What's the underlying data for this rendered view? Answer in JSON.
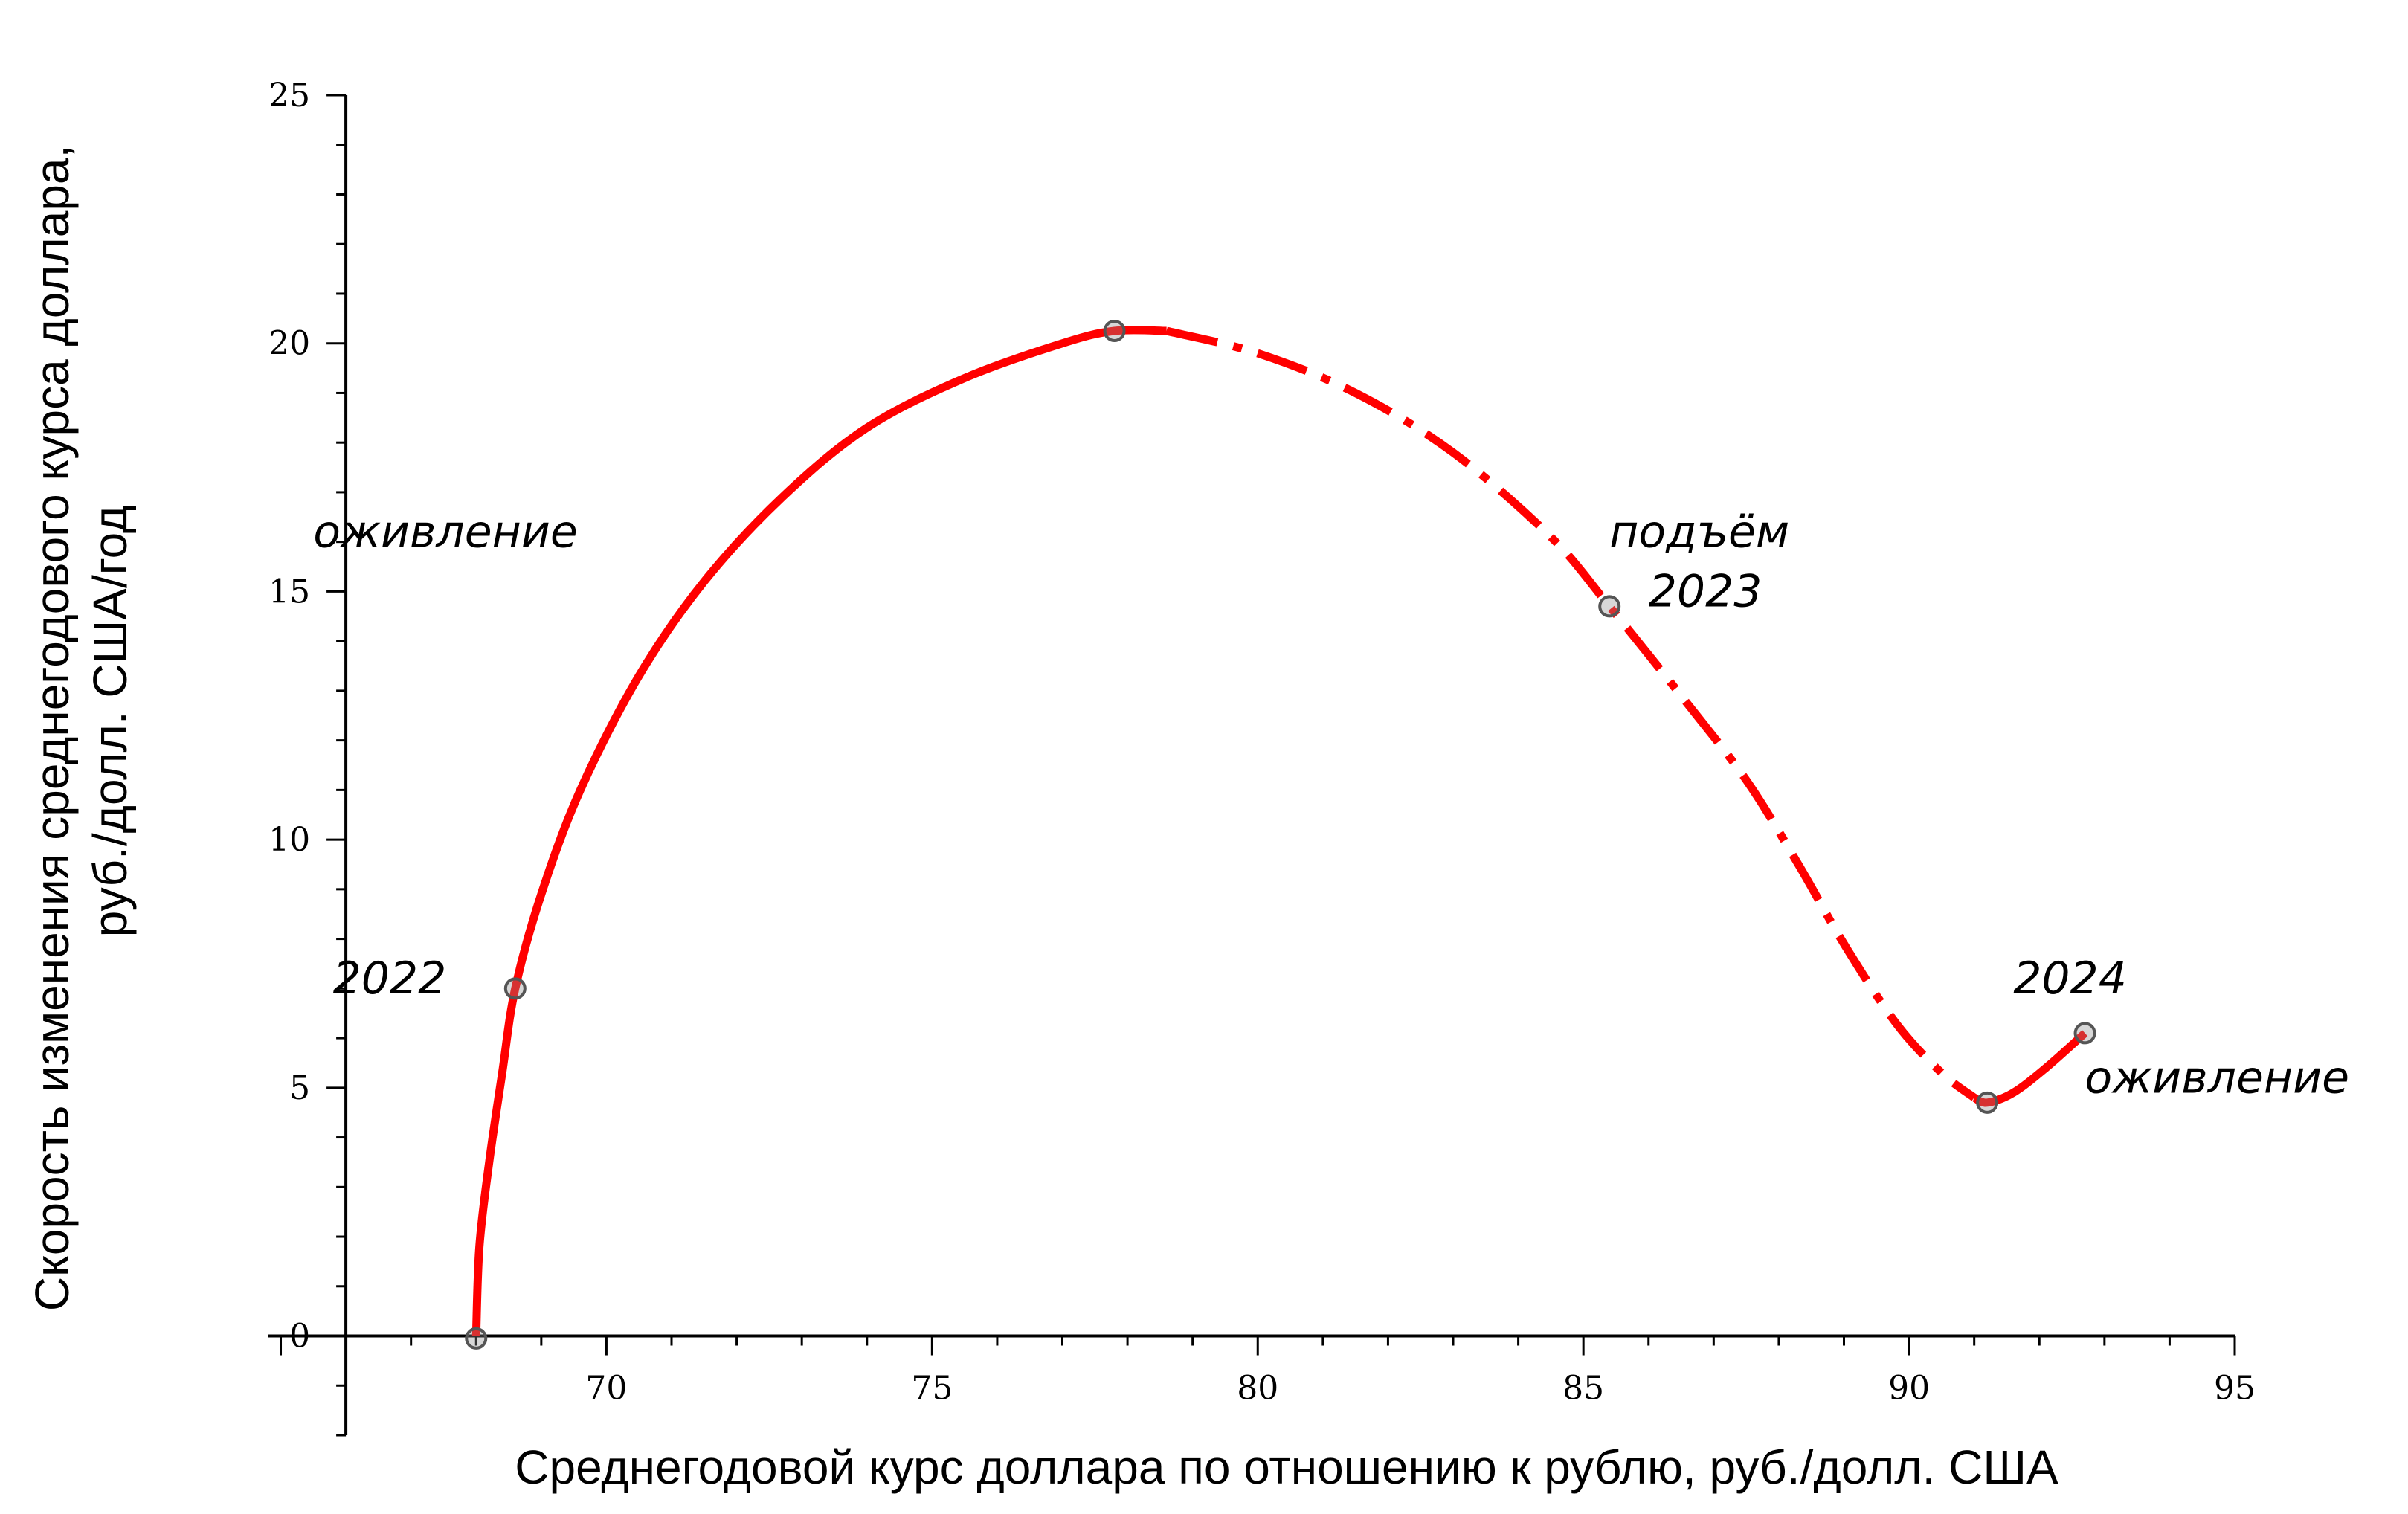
{
  "chart_data": {
    "type": "line",
    "title": "",
    "xlabel": "Среднегодовой курс доллара по отношению к рублю, руб./долл. США",
    "ylabel_lines": [
      "Скорость изменения среднегодового курса доллара,",
      "руб./долл. США/год"
    ],
    "xlim": [
      64.8,
      95
    ],
    "ylim": [
      -2,
      25
    ],
    "x_ticks": [
      70,
      75,
      80,
      85,
      90,
      95
    ],
    "y_ticks": [
      0,
      5,
      10,
      15,
      20,
      25
    ],
    "x_tick_labels": [
      "70",
      "75",
      "80",
      "85",
      "90",
      "95"
    ],
    "y_tick_labels": [
      "0",
      "5",
      "10",
      "15",
      "20",
      "25"
    ],
    "grid": false,
    "colors": {
      "curve": "#ff0000",
      "axis": "#000000",
      "marker": "#555555"
    },
    "series": [
      {
        "style": "solid",
        "points": [
          [
            68.0,
            0.0
          ],
          [
            68.05,
            1.8
          ],
          [
            68.2,
            3.5
          ],
          [
            68.4,
            5.3
          ],
          [
            68.6,
            7.0
          ],
          [
            69.0,
            8.9
          ],
          [
            69.6,
            11.0
          ],
          [
            70.5,
            13.3
          ],
          [
            71.5,
            15.2
          ],
          [
            72.7,
            16.9
          ],
          [
            74.0,
            18.3
          ],
          [
            75.5,
            19.3
          ],
          [
            77.0,
            20.0
          ],
          [
            77.8,
            20.25
          ],
          [
            78.6,
            20.25
          ]
        ]
      },
      {
        "style": "dash-dot",
        "points": [
          [
            78.6,
            20.25
          ],
          [
            80.0,
            19.8
          ],
          [
            81.5,
            19.0
          ],
          [
            83.0,
            17.8
          ],
          [
            84.5,
            16.1
          ],
          [
            85.4,
            14.7
          ],
          [
            86.5,
            12.9
          ],
          [
            87.5,
            11.2
          ],
          [
            88.3,
            9.5
          ],
          [
            89.0,
            7.9
          ],
          [
            89.8,
            6.3
          ],
          [
            90.5,
            5.3
          ],
          [
            91.0,
            4.8
          ]
        ]
      },
      {
        "style": "solid",
        "points": [
          [
            91.0,
            4.8
          ],
          [
            91.2,
            4.7
          ],
          [
            91.6,
            4.9
          ],
          [
            92.1,
            5.4
          ],
          [
            92.7,
            6.1
          ]
        ]
      }
    ],
    "markers": [
      [
        68.0,
        -0.05
      ],
      [
        68.6,
        7.0
      ],
      [
        77.8,
        20.25
      ],
      [
        85.4,
        14.7
      ],
      [
        91.2,
        4.7
      ],
      [
        92.7,
        6.1
      ]
    ],
    "annotations": [
      {
        "text": "оживление",
        "x": 65.5,
        "y": 15.9
      },
      {
        "text": "2022",
        "x": 65.8,
        "y": 6.9
      },
      {
        "text": "подъём",
        "x": 85.4,
        "y": 15.9
      },
      {
        "text": "2023",
        "x": 86.0,
        "y": 14.7
      },
      {
        "text": "2024",
        "x": 91.6,
        "y": 6.9
      },
      {
        "text": "оживление",
        "x": 92.7,
        "y": 4.9
      }
    ]
  }
}
